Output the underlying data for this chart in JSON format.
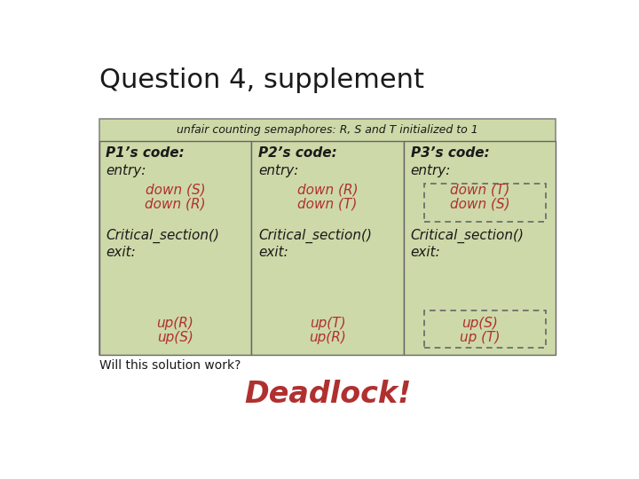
{
  "title": "Question 4, supplement",
  "subtitle": "unfair counting semaphores: R, S and T initialized to 1",
  "bg_color": "#ffffff",
  "outer_box_color": "#cdd9a8",
  "outer_box_edge": "#888888",
  "inner_box_color": "#cdd9a8",
  "inner_box_edge": "#666666",
  "dashed_box_edge": "#666666",
  "text_black": "#1a1a1a",
  "text_red": "#b03030",
  "columns": [
    {
      "header": "P1’s code:",
      "entry_label": "entry:",
      "entry_cmds": [
        "down (S)",
        "down (R)"
      ],
      "critical": "Critical_section()",
      "exit_label": "exit:",
      "exit_cmds": [
        "up(R)",
        "up(S)"
      ],
      "dashed_entry": false,
      "dashed_exit": false
    },
    {
      "header": "P2’s code:",
      "entry_label": "entry:",
      "entry_cmds": [
        "down (R)",
        "down (T)"
      ],
      "critical": "Critical_section()",
      "exit_label": "exit:",
      "exit_cmds": [
        "up(T)",
        "up(R)"
      ],
      "dashed_entry": false,
      "dashed_exit": false
    },
    {
      "header": "P3’s code:",
      "entry_label": "entry:",
      "entry_cmds": [
        "down (T)",
        "down (S)"
      ],
      "critical": "Critical_section()",
      "exit_label": "exit:",
      "exit_cmds": [
        "up(S)",
        "up (T)"
      ],
      "dashed_entry": true,
      "dashed_exit": true
    }
  ],
  "footer": "Will this solution work?",
  "answer": "Deadlock!"
}
